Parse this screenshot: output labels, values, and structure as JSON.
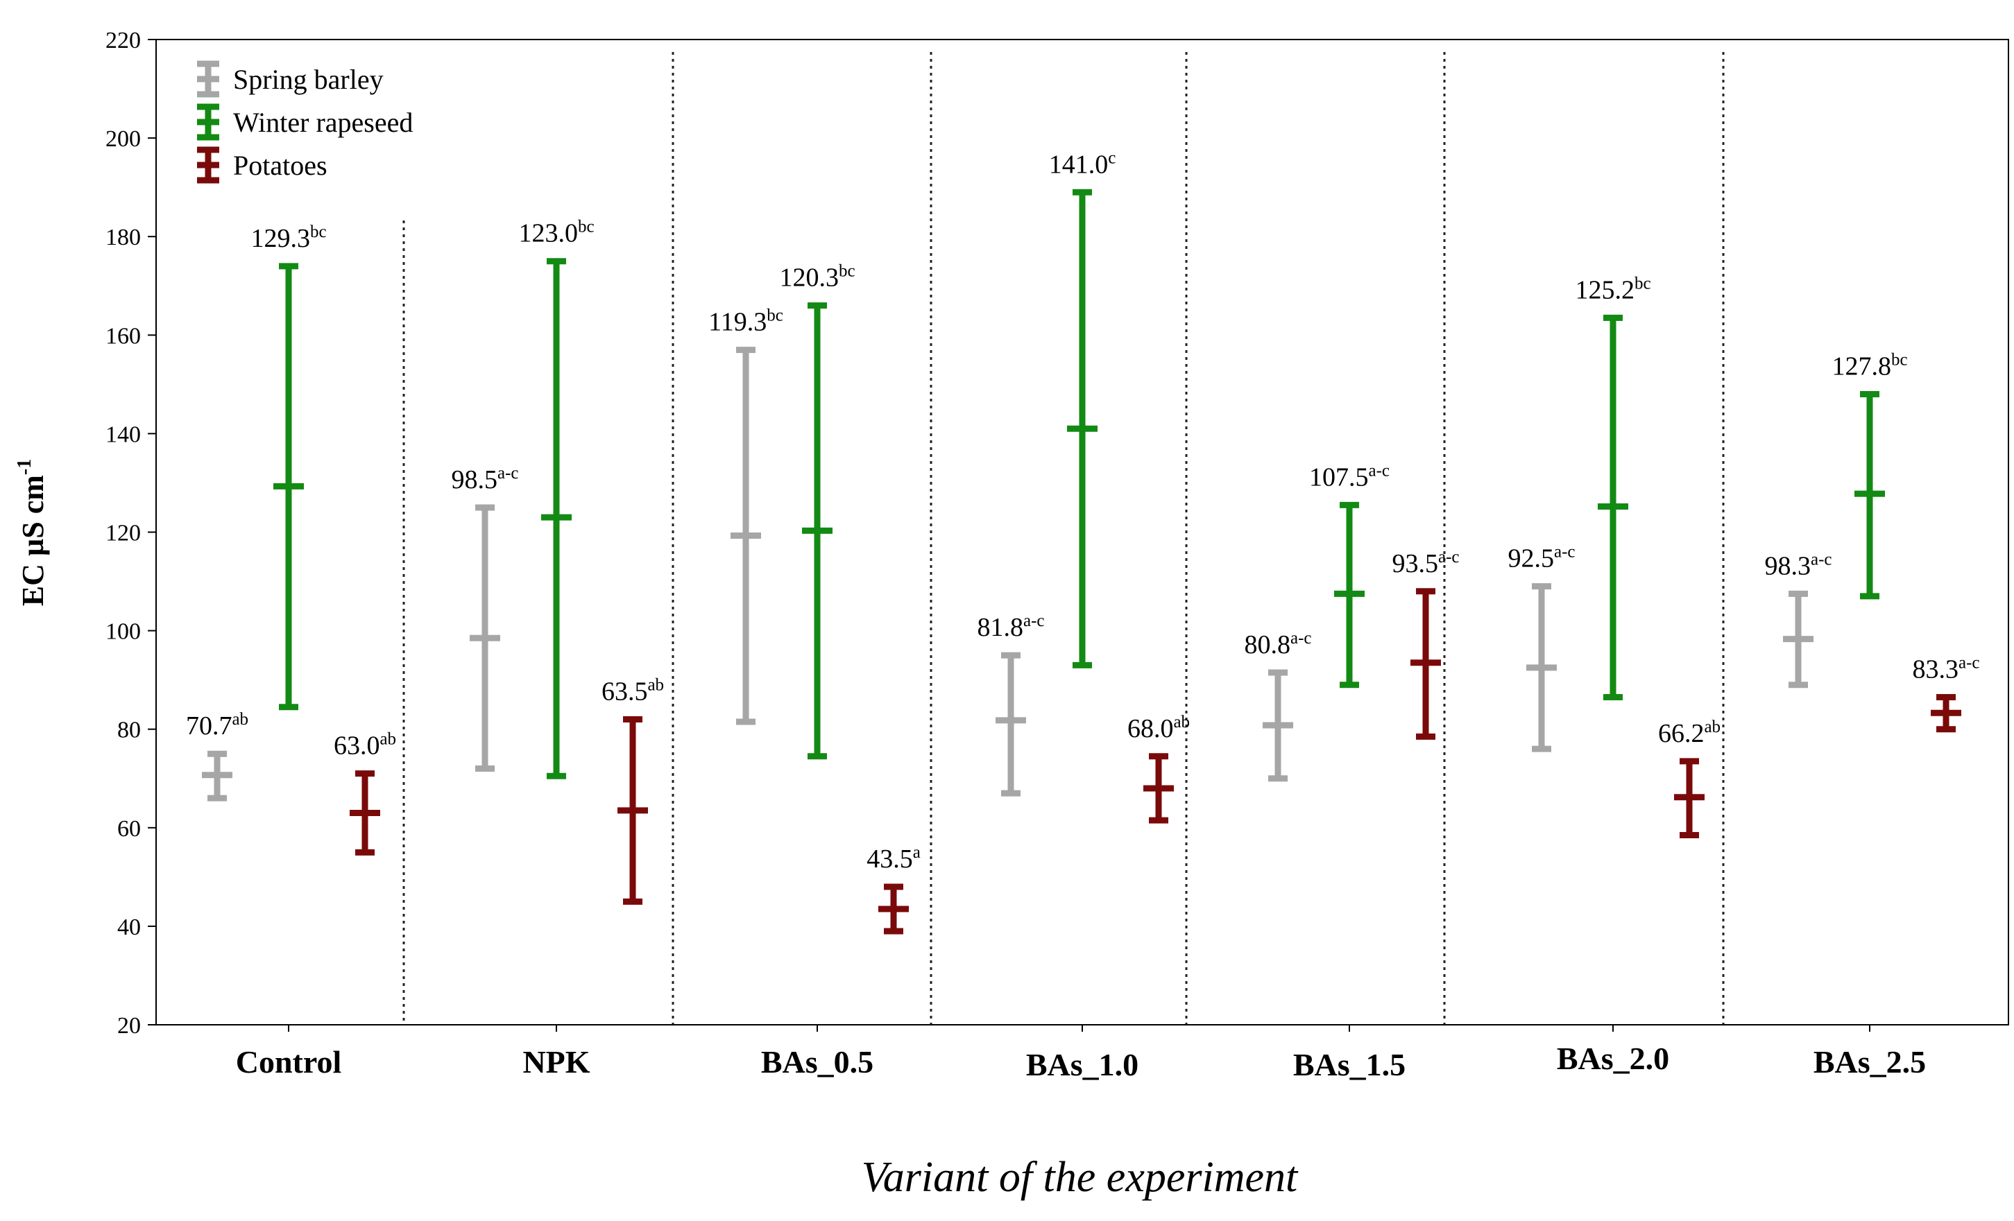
{
  "chart_data": {
    "type": "errorbar",
    "title": "",
    "xlabel": "Variant of the experiment",
    "ylabel_main": "EC µS cm",
    "ylabel_sup": "-1",
    "ylim": [
      20,
      220
    ],
    "yticks": [
      20,
      40,
      60,
      80,
      100,
      120,
      140,
      160,
      180,
      200,
      220
    ],
    "grid": false,
    "legend_position": "top-left",
    "categories": [
      "Control",
      "NPK",
      "BAs_0.5",
      "BAs_1.0",
      "BAs_1.5",
      "BAs_2.0",
      "BAs_2.5"
    ],
    "series": [
      {
        "name": "Spring barley",
        "color": "#a6a6a6",
        "mean": [
          70.7,
          98.5,
          119.3,
          81.8,
          80.8,
          92.5,
          98.3
        ],
        "lower": [
          66.0,
          72.0,
          81.5,
          67.0,
          70.0,
          76.0,
          89.0
        ],
        "upper": [
          75.0,
          125.0,
          157.0,
          95.0,
          91.5,
          109.0,
          107.5
        ],
        "mean_labels": [
          "70.7",
          "98.5",
          "119.3",
          "81.8",
          "80.8",
          "92.5",
          "98.3"
        ],
        "letters": [
          "ab",
          "a-c",
          "bc",
          "a-c",
          "a-c",
          "a-c",
          "a-c"
        ]
      },
      {
        "name": "Winter rapeseed",
        "color": "#138a13",
        "mean": [
          129.3,
          123.0,
          120.3,
          141.0,
          107.5,
          125.2,
          127.8
        ],
        "lower": [
          84.5,
          70.5,
          74.5,
          93.0,
          89.0,
          86.5,
          107.0
        ],
        "upper": [
          174.0,
          175.0,
          166.0,
          189.0,
          125.5,
          163.5,
          148.0
        ],
        "mean_labels": [
          "129.3",
          "123.0",
          "120.3",
          "141.0",
          "107.5",
          "125.2",
          "127.8"
        ],
        "letters": [
          "bc",
          "bc",
          "bc",
          "c",
          "a-c",
          "bc",
          "bc"
        ]
      },
      {
        "name": "Potatoes",
        "color": "#7a0a0a",
        "mean": [
          63.0,
          63.5,
          43.5,
          68.0,
          93.5,
          66.2,
          83.3
        ],
        "lower": [
          55.0,
          45.0,
          39.0,
          61.5,
          78.5,
          58.5,
          80.0
        ],
        "upper": [
          71.0,
          82.0,
          48.0,
          74.5,
          108.0,
          73.5,
          86.5
        ],
        "mean_labels": [
          "63.0",
          "63.5",
          "43.5",
          "68.0",
          "93.5",
          "66.2",
          "83.3"
        ],
        "letters": [
          "ab",
          "ab",
          "a",
          "ab",
          "a-c",
          "ab",
          "a-c"
        ]
      }
    ]
  }
}
